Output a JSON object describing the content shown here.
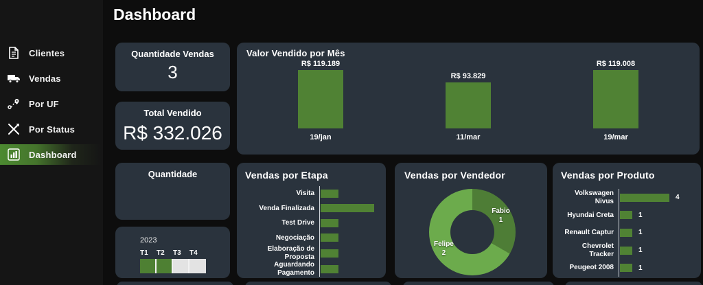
{
  "page": {
    "title": "Dashboard"
  },
  "sidebar": {
    "items": [
      {
        "label": "Clientes",
        "icon": "document-icon",
        "active": false
      },
      {
        "label": "Vendas",
        "icon": "truck-icon",
        "active": false
      },
      {
        "label": "Por UF",
        "icon": "route-icon",
        "active": false
      },
      {
        "label": "Por Status",
        "icon": "tools-icon",
        "active": false
      },
      {
        "label": "Dashboard",
        "icon": "bar-chart-icon",
        "active": true
      }
    ]
  },
  "kpis": {
    "quantidade_vendas": {
      "label": "Quantidade Vendas",
      "value": "3"
    },
    "total_vendido": {
      "label": "Total Vendido",
      "value": "R$ 332.026"
    },
    "quantidade": {
      "label": "Quantidade",
      "value": ""
    }
  },
  "slicer": {
    "year": "2023",
    "periods": [
      {
        "label": "T1",
        "selected": true
      },
      {
        "label": "T2",
        "selected": true
      },
      {
        "label": "T3",
        "selected": false
      },
      {
        "label": "T4",
        "selected": false
      }
    ]
  },
  "colors": {
    "page_bg": "#0d0d0d",
    "sidebar_bg": "#151515",
    "card_bg": "#2a333d",
    "accent_green": "#508234",
    "donut_fabio": "#4e7d36",
    "donut_felipe": "#6cab4c",
    "slicer_selected": "#4e8033",
    "slicer_unselected": "#e3e3e3"
  },
  "chart_data": [
    {
      "type": "bar",
      "title": "Valor Vendido por Mês",
      "categories": [
        "19/jan",
        "11/mar",
        "19/mar"
      ],
      "values": [
        119189,
        93829,
        119008
      ],
      "data_labels": [
        "R$ 119.189",
        "R$ 93.829",
        "R$ 119.008"
      ],
      "bar_color": "#508234",
      "ylim": [
        0,
        119189
      ],
      "grid": false,
      "legend": "none"
    },
    {
      "type": "bar",
      "orientation": "horizontal",
      "title": "Vendas por Etapa",
      "categories": [
        "Visita",
        "Venda Finalizada",
        "Test Drive",
        "Negociação",
        "Elaboração de Proposta",
        "Aguardando Pagamento"
      ],
      "values": [
        1,
        3,
        1,
        1,
        1,
        1
      ],
      "bar_color": "#508234",
      "xlim": [
        0,
        3
      ],
      "data_labels_shown": false
    },
    {
      "type": "pie",
      "donut": true,
      "title": "Vendas por Vendedor",
      "labels": [
        "Fabio",
        "Felipe"
      ],
      "values": [
        1,
        2
      ],
      "colors": [
        "#4e7d36",
        "#6cab4c"
      ],
      "legend": "inside-labels"
    },
    {
      "type": "bar",
      "orientation": "horizontal",
      "title": "Vendas por Produto",
      "categories": [
        "Volkswagen Nivus",
        "Hyundai Creta",
        "Renault Captur",
        "Chevrolet Tracker",
        "Peugeot 2008"
      ],
      "values": [
        4,
        1,
        1,
        1,
        1
      ],
      "data_labels": [
        "4",
        "1",
        "1",
        "1",
        "1"
      ],
      "bar_color": "#508234",
      "xlim": [
        0,
        4
      ],
      "data_labels_shown": true
    }
  ]
}
